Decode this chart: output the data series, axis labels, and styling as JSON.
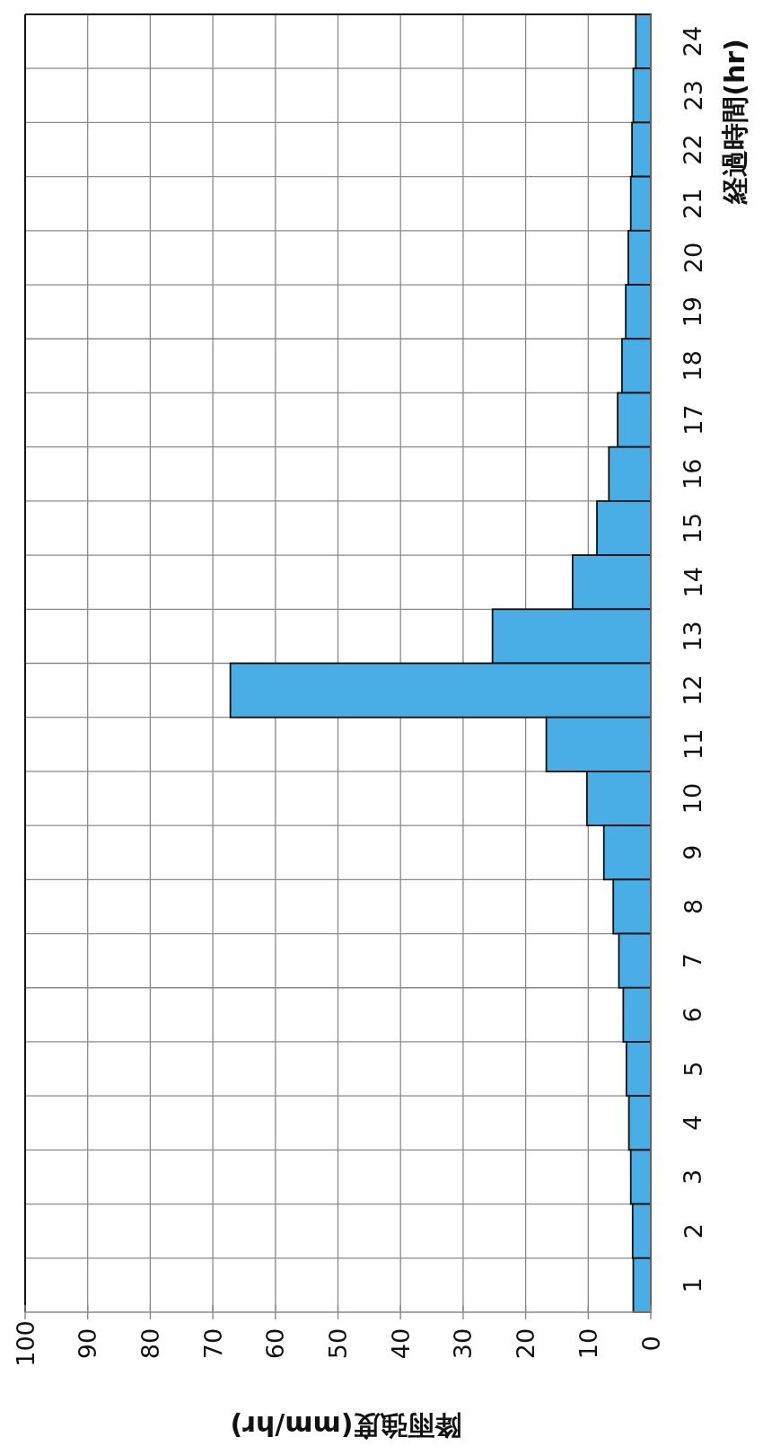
{
  "chart_data": {
    "type": "bar",
    "orientation": "horizontal",
    "categories": [
      "24",
      "23",
      "22",
      "21",
      "20",
      "19",
      "18",
      "17",
      "16",
      "15",
      "14",
      "13",
      "12",
      "11",
      "10",
      "9",
      "8",
      "7",
      "6",
      "5",
      "4",
      "3",
      "2",
      "1"
    ],
    "values": [
      2.4,
      2.8,
      3.0,
      3.2,
      3.6,
      4.0,
      4.6,
      5.3,
      6.7,
      8.6,
      12.5,
      25.3,
      67.2,
      16.7,
      10.2,
      7.5,
      6.0,
      5.1,
      4.4,
      3.9,
      3.5,
      3.2,
      2.9,
      2.8
    ],
    "color": "#4aaee6",
    "xlim": [
      100,
      0
    ],
    "xticks": [
      100,
      90,
      80,
      70,
      60,
      50,
      40,
      30,
      20,
      10,
      0
    ],
    "xlabel": "降雨強度(mm/hr)",
    "ylabel": "経過時間(hr)",
    "grid": true
  }
}
